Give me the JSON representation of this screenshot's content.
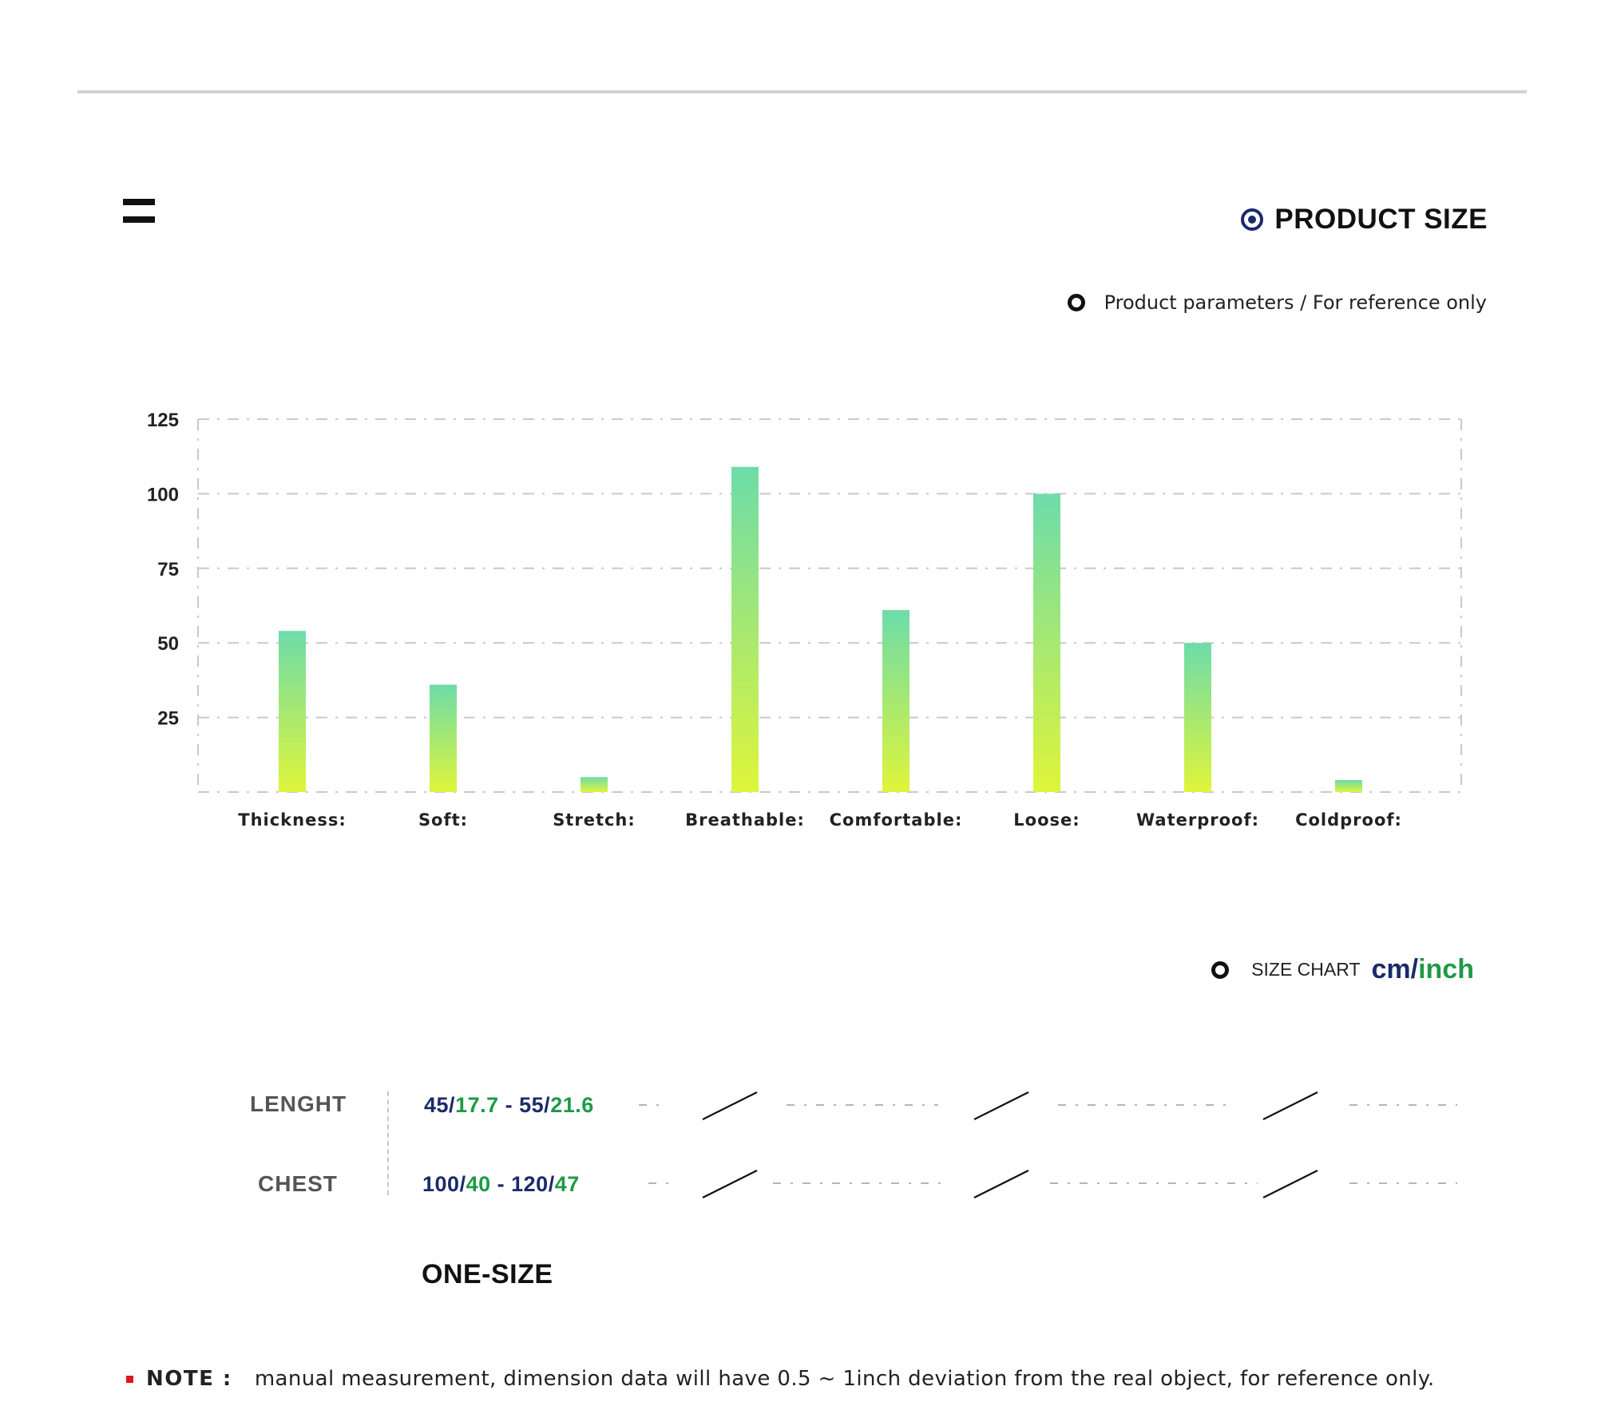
{
  "header": {
    "section_title": "PRODUCT SIZE",
    "params_caption": "Product parameters / For reference only"
  },
  "chart_data": {
    "type": "bar",
    "categories": [
      "Thickness:",
      "Soft:",
      "Stretch:",
      "Breathable:",
      "Comfortable:",
      "Loose:",
      "Waterproof:",
      "Coldproof:"
    ],
    "values": [
      54,
      36,
      5,
      109,
      61,
      100,
      50,
      4
    ],
    "yticks": [
      125,
      100,
      75,
      50,
      25
    ],
    "ylim": [
      0,
      125
    ],
    "grid": true,
    "colors": {
      "bar_top": "#6ddcaa",
      "bar_bottom": "#dff53a",
      "grid": "#c9c9c9",
      "axis_text": "#222222"
    }
  },
  "size_chart": {
    "label": "SIZE CHART",
    "unit_cm": "cm",
    "unit_sep": "/",
    "unit_inch": "inch",
    "rows": [
      {
        "name": "LENGHT",
        "a_cm": "45",
        "a_in": "17.7",
        "dash": " - ",
        "b_cm": "55",
        "b_in": "21.6"
      },
      {
        "name": "CHEST",
        "a_cm": "100",
        "a_in": "40",
        "dash": " - ",
        "b_cm": "120",
        "b_in": "47"
      }
    ],
    "slash": "/",
    "size_name": "ONE-SIZE"
  },
  "note": {
    "label": "NOTE :",
    "text": "manual measurement, dimension data will have 0.5 ~ 1inch deviation from the real object, for reference only."
  },
  "colors": {
    "navy": "#1b2a6b",
    "green": "#1e9a45",
    "red": "#e0151b"
  }
}
